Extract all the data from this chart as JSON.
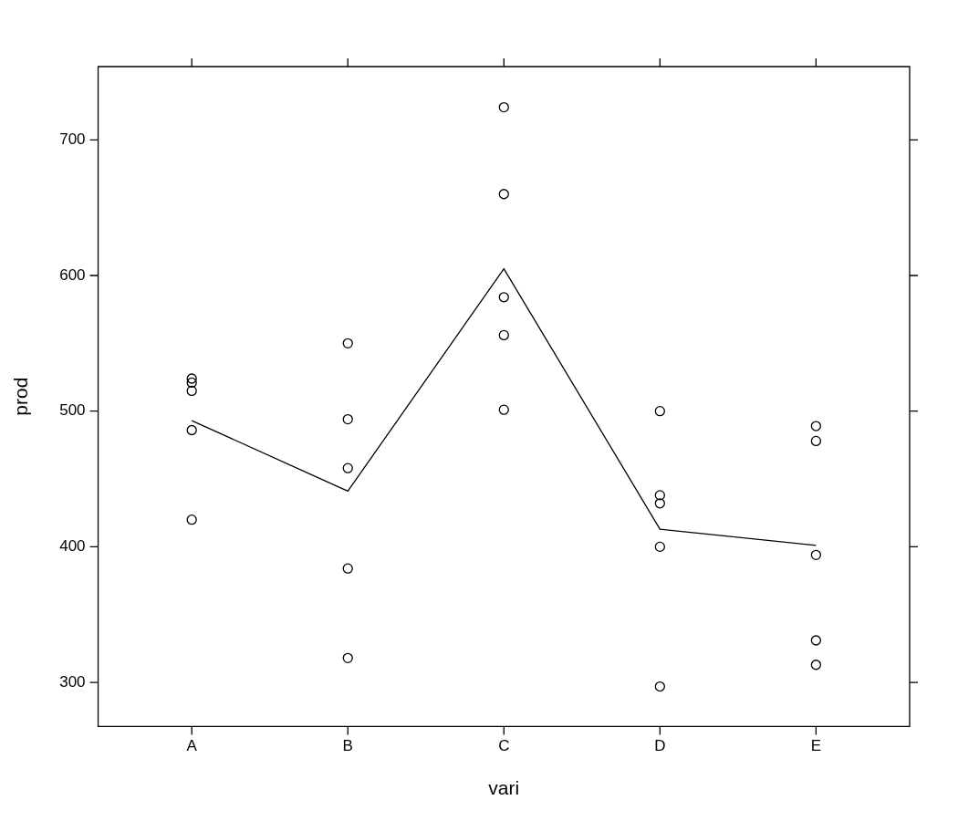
{
  "chart_data": {
    "type": "scatter",
    "xlabel": "vari",
    "ylabel": "prod",
    "categories": [
      "A",
      "B",
      "C",
      "D",
      "E"
    ],
    "ylim": [
      267.5,
      754
    ],
    "yticks": [
      300,
      400,
      500,
      600,
      700
    ],
    "grid": false,
    "legend": false,
    "marker": "circle",
    "series": [
      {
        "type": "scatter",
        "color": "#000000",
        "x": [
          "A",
          "A",
          "A",
          "A",
          "A",
          "B",
          "B",
          "B",
          "B",
          "B",
          "C",
          "C",
          "C",
          "C",
          "C",
          "D",
          "D",
          "D",
          "D",
          "D",
          "E",
          "E",
          "E",
          "E",
          "E"
        ],
        "values": [
          524,
          521,
          515,
          486,
          420,
          550,
          494,
          458,
          384,
          318,
          724,
          660,
          584,
          556,
          501,
          500,
          438,
          432,
          400,
          297,
          489,
          478,
          394,
          331,
          313
        ]
      },
      {
        "type": "line",
        "color": "#000000",
        "line_style": "solid",
        "marker": "none",
        "values": [
          493,
          441,
          605,
          413,
          401
        ]
      }
    ]
  }
}
